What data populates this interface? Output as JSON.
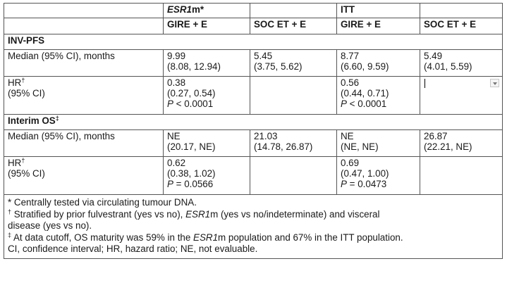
{
  "header": {
    "esr_prefix": "ESR1",
    "esr_suffix": "m*",
    "itt": "ITT",
    "col_gire": "GIRE + E",
    "col_soc": "SOC ET + E"
  },
  "inv_pfs": {
    "title": "INV-PFS",
    "median_label": "Median (95% CI), months",
    "median": {
      "esr_gire": [
        "9.99",
        "(8.08, 12.94)"
      ],
      "esr_soc": [
        "5.45",
        "(3.75, 5.62)"
      ],
      "itt_gire": [
        "8.77",
        "(6.60, 9.59)"
      ],
      "itt_soc": [
        "5.49",
        "(4.01, 5.59)"
      ]
    },
    "hr_label": "HR",
    "hr_sup": "†",
    "hr_ci": "(95% CI)",
    "hr": {
      "esr": [
        "0.38",
        "(0.27, 0.54)"
      ],
      "esr_p_val": " < 0.0001",
      "itt": [
        "0.56",
        "(0.44, 0.71)"
      ],
      "itt_p_val": " < 0.0001"
    },
    "p_symbol": "P"
  },
  "interim_os": {
    "title": "Interim OS",
    "title_sup": "‡",
    "median_label": "Median (95% CI), months",
    "median": {
      "esr_gire": [
        "NE",
        "(20.17, NE)"
      ],
      "esr_soc": [
        "21.03",
        "(14.78, 26.87)"
      ],
      "itt_gire": [
        "NE",
        "(NE, NE)"
      ],
      "itt_soc": [
        "26.87",
        "(22.21, NE)"
      ]
    },
    "hr_label": "HR",
    "hr_sup": "†",
    "hr_ci": "(95% CI)",
    "hr": {
      "esr": [
        "0.62",
        "(0.38, 1.02)"
      ],
      "esr_p_val": " = 0.0566",
      "itt": [
        "0.69",
        "(0.47, 1.00)"
      ],
      "itt_p_val": " = 0.0473"
    },
    "p_symbol": "P"
  },
  "footnotes": {
    "f1": "* Centrally tested via circulating tumour DNA.",
    "f2_sup": "†",
    "f2_a": " Stratified by prior fulvestrant (yes vs no), ",
    "f2_b": "m (yes vs no/indeterminate) and visceral",
    "f2_c": "disease (yes vs no).",
    "f3_sup": "‡",
    "f3_a": " At data cutoff, OS maturity was 59% in the ",
    "f3_b": "m population and 67% in the ITT population.",
    "f4": "CI, confidence interval; HR, hazard ratio; NE, not evaluable.",
    "esr_italic": "ESR1"
  }
}
